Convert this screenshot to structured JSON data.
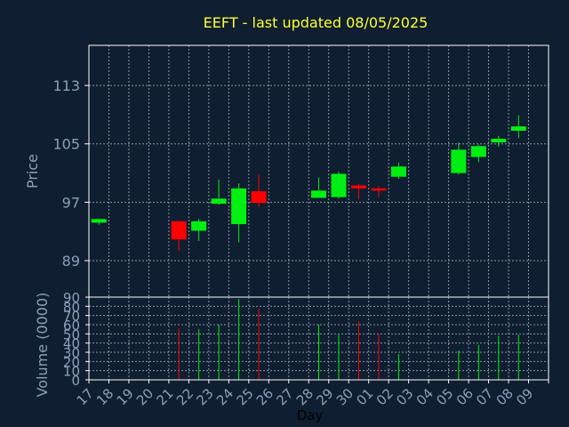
{
  "title": "EEFT - last updated 08/05/2025",
  "colors": {
    "background": "#0f1e30",
    "frame": "#ffffff",
    "grid": "#8a97a5",
    "title": "#ffff33",
    "axis_text": "#8aa0b8",
    "xlabel_text": "#000000",
    "up": "#00ee11",
    "down": "#ff0000"
  },
  "chart_data": [
    {
      "type": "candlestick",
      "ylabel": "Price",
      "ylim": [
        84,
        118.5
      ],
      "yticks": [
        89,
        97,
        105,
        113
      ],
      "grid": true,
      "categories": [
        "17",
        "18",
        "19",
        "20",
        "21",
        "22",
        "23",
        "24",
        "25",
        "26",
        "27",
        "28",
        "29",
        "30",
        "01",
        "02",
        "03",
        "04",
        "05",
        "06",
        "07",
        "08",
        "09"
      ],
      "candles": [
        {
          "x": "17",
          "open": 94.2,
          "high": 94.7,
          "low": 93.9,
          "close": 94.7
        },
        {
          "x": "21",
          "open": 94.4,
          "high": 94.4,
          "low": 90.3,
          "close": 91.9
        },
        {
          "x": "22",
          "open": 93.1,
          "high": 94.7,
          "low": 91.7,
          "close": 94.4
        },
        {
          "x": "23",
          "open": 96.8,
          "high": 100.1,
          "low": 96.6,
          "close": 97.5
        },
        {
          "x": "24",
          "open": 94.0,
          "high": 99.6,
          "low": 91.5,
          "close": 98.9
        },
        {
          "x": "25",
          "open": 98.5,
          "high": 100.8,
          "low": 96.4,
          "close": 96.9
        },
        {
          "x": "28",
          "open": 97.6,
          "high": 100.4,
          "low": 97.6,
          "close": 98.6
        },
        {
          "x": "29",
          "open": 97.7,
          "high": 101.2,
          "low": 97.5,
          "close": 100.9
        },
        {
          "x": "30",
          "open": 99.3,
          "high": 99.5,
          "low": 97.4,
          "close": 98.9
        },
        {
          "x": "01",
          "open": 98.9,
          "high": 99.2,
          "low": 97.7,
          "close": 98.6
        },
        {
          "x": "02",
          "open": 100.5,
          "high": 102.4,
          "low": 100.2,
          "close": 101.9
        },
        {
          "x": "05",
          "open": 101.0,
          "high": 105.2,
          "low": 100.8,
          "close": 104.2
        },
        {
          "x": "06",
          "open": 103.2,
          "high": 104.9,
          "low": 102.5,
          "close": 104.7
        },
        {
          "x": "07",
          "open": 105.2,
          "high": 106.1,
          "low": 104.6,
          "close": 105.7
        },
        {
          "x": "08",
          "open": 106.8,
          "high": 108.9,
          "low": 105.8,
          "close": 107.4
        }
      ]
    },
    {
      "type": "bar",
      "xlabel": "Day",
      "ylabel": "Volume (0000)",
      "ylim": [
        0,
        90
      ],
      "yticks": [
        0,
        10,
        20,
        30,
        40,
        50,
        60,
        70,
        80,
        90
      ],
      "grid": true,
      "categories": [
        "17",
        "18",
        "19",
        "20",
        "21",
        "22",
        "23",
        "24",
        "25",
        "26",
        "27",
        "28",
        "29",
        "30",
        "01",
        "02",
        "03",
        "04",
        "05",
        "06",
        "07",
        "08",
        "09"
      ],
      "bars": [
        {
          "x": "21",
          "value": 56,
          "dir": "down"
        },
        {
          "x": "22",
          "value": 55,
          "dir": "up"
        },
        {
          "x": "23",
          "value": 60,
          "dir": "up"
        },
        {
          "x": "24",
          "value": 88,
          "dir": "up"
        },
        {
          "x": "25",
          "value": 78,
          "dir": "down"
        },
        {
          "x": "28",
          "value": 60,
          "dir": "up"
        },
        {
          "x": "29",
          "value": 49,
          "dir": "up"
        },
        {
          "x": "30",
          "value": 64,
          "dir": "down"
        },
        {
          "x": "01",
          "value": 50,
          "dir": "down"
        },
        {
          "x": "02",
          "value": 28,
          "dir": "up"
        },
        {
          "x": "05",
          "value": 32,
          "dir": "up"
        },
        {
          "x": "06",
          "value": 38,
          "dir": "up"
        },
        {
          "x": "07",
          "value": 48,
          "dir": "up"
        },
        {
          "x": "08",
          "value": 49,
          "dir": "up"
        }
      ]
    }
  ]
}
